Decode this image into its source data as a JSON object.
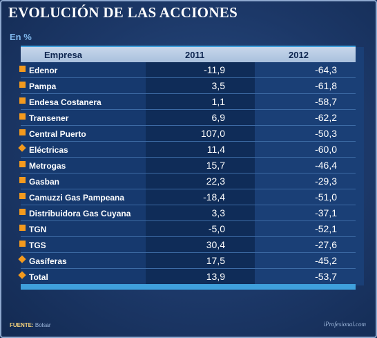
{
  "title": "EVOLUCIÓN DE LAS ACCIONES",
  "subtitle": "En %",
  "columns": [
    "Empresa",
    "2011",
    "2012"
  ],
  "rows": [
    {
      "empresa": "Edenor",
      "v2011": "-11,9",
      "v2012": "-64,3",
      "marker": "square"
    },
    {
      "empresa": "Pampa",
      "v2011": "3,5",
      "v2012": "-61,8",
      "marker": "square"
    },
    {
      "empresa": "Endesa Costanera",
      "v2011": "1,1",
      "v2012": "-58,7",
      "marker": "square"
    },
    {
      "empresa": "Transener",
      "v2011": "6,9",
      "v2012": "-62,2",
      "marker": "square"
    },
    {
      "empresa": "Central Puerto",
      "v2011": "107,0",
      "v2012": "-50,3",
      "marker": "square"
    },
    {
      "empresa": "Eléctricas",
      "v2011": "11,4",
      "v2012": "-60,0",
      "marker": "diamond"
    },
    {
      "empresa": "Metrogas",
      "v2011": "15,7",
      "v2012": "-46,4",
      "marker": "square"
    },
    {
      "empresa": "Gasban",
      "v2011": "22,3",
      "v2012": "-29,3",
      "marker": "square"
    },
    {
      "empresa": "Camuzzi Gas Pampeana",
      "v2011": "-18,4",
      "v2012": "-51,0",
      "marker": "square"
    },
    {
      "empresa": "Distribuidora Gas Cuyana",
      "v2011": "3,3",
      "v2012": "-37,1",
      "marker": "square"
    },
    {
      "empresa": "TGN",
      "v2011": "-5,0",
      "v2012": "-52,1",
      "marker": "square"
    },
    {
      "empresa": "TGS",
      "v2011": "30,4",
      "v2012": "-27,6",
      "marker": "square"
    },
    {
      "empresa": "Gasíferas",
      "v2011": "17,5",
      "v2012": "-45,2",
      "marker": "diamond"
    },
    {
      "empresa": "Total",
      "v2011": "13,9",
      "v2012": "-53,7",
      "marker": "diamond"
    }
  ],
  "footer": {
    "label": "FUENTE:",
    "source": "Bolsar",
    "brand": "iProfesional.com"
  },
  "colors": {
    "marker": "#f39a1e",
    "header_bg": "#b8cde6",
    "accent_bar": "#3fa0dc"
  },
  "chart_data": {
    "type": "table",
    "title": "EVOLUCIÓN DE LAS ACCIONES",
    "subtitle": "En %",
    "columns": [
      "Empresa",
      "2011",
      "2012"
    ],
    "categories": [
      "Edenor",
      "Pampa",
      "Endesa Costanera",
      "Transener",
      "Central Puerto",
      "Eléctricas",
      "Metrogas",
      "Gasban",
      "Camuzzi Gas Pampeana",
      "Distribuidora Gas Cuyana",
      "TGN",
      "TGS",
      "Gasíferas",
      "Total"
    ],
    "series": [
      {
        "name": "2011",
        "values": [
          -11.9,
          3.5,
          1.1,
          6.9,
          107.0,
          11.4,
          15.7,
          22.3,
          -18.4,
          3.3,
          -5.0,
          30.4,
          17.5,
          13.9
        ]
      },
      {
        "name": "2012",
        "values": [
          -64.3,
          -61.8,
          -58.7,
          -62.2,
          -50.3,
          -60.0,
          -46.4,
          -29.3,
          -51.0,
          -37.1,
          -52.1,
          -27.6,
          -45.2,
          -53.7
        ]
      }
    ]
  }
}
